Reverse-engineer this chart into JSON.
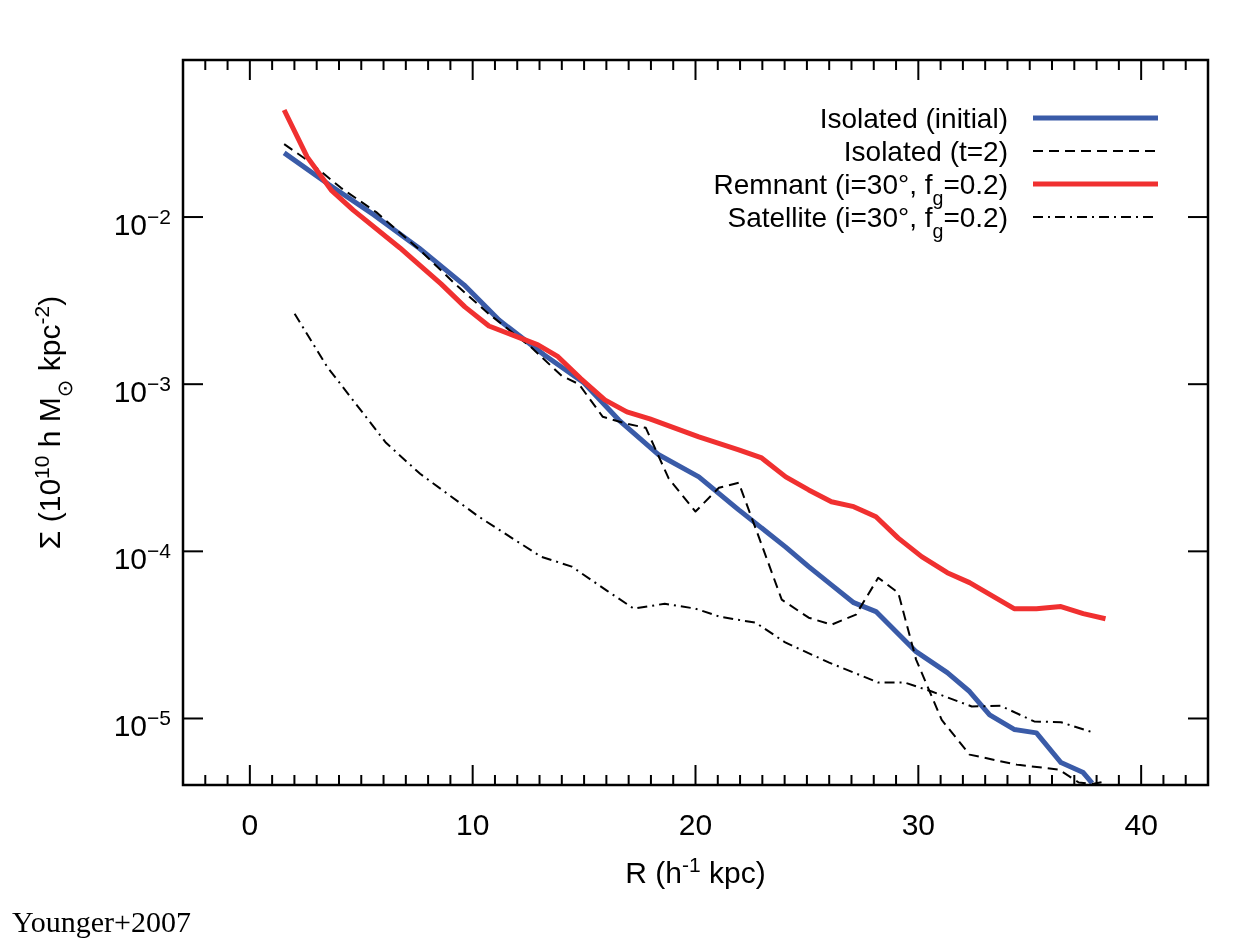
{
  "chart_data": {
    "type": "line",
    "xlabel": "R (h$^{-1}$ kpc)",
    "ylabel": "Σ (10$^{10}$ h M$_{⊙}$ kpc$^{-2}$)",
    "log": "y",
    "legend": "top right",
    "xlim": [
      -3,
      43
    ],
    "ylim": [
      4e-06,
      0.087
    ],
    "xticks": [
      {
        "value": -3,
        "label": null
      },
      {
        "value": -2,
        "label": null
      },
      {
        "value": -1,
        "label": null
      },
      0,
      {
        "value": 1,
        "label": null
      },
      {
        "value": 2,
        "label": null
      },
      {
        "value": 3,
        "label": null
      },
      {
        "value": 4,
        "label": null
      },
      {
        "value": 5,
        "label": null
      },
      {
        "value": 6,
        "label": null
      },
      {
        "value": 7,
        "label": null
      },
      {
        "value": 8,
        "label": null
      },
      {
        "value": 9,
        "label": null
      },
      10,
      {
        "value": 11,
        "label": null
      },
      {
        "value": 12,
        "label": null
      },
      {
        "value": 13,
        "label": null
      },
      {
        "value": 14,
        "label": null
      },
      {
        "value": 15,
        "label": null
      },
      {
        "value": 16,
        "label": null
      },
      {
        "value": 17,
        "label": null
      },
      {
        "value": 18,
        "label": null
      },
      {
        "value": 19,
        "label": null
      },
      20,
      {
        "value": 21,
        "label": null
      },
      {
        "value": 22,
        "label": null
      },
      {
        "value": 23,
        "label": null
      },
      {
        "value": 24,
        "label": null
      },
      {
        "value": 25,
        "label": null
      },
      {
        "value": 26,
        "label": null
      },
      {
        "value": 27,
        "label": null
      },
      {
        "value": 28,
        "label": null
      },
      {
        "value": 29,
        "label": null
      },
      30,
      {
        "value": 31,
        "label": null
      },
      {
        "value": 32,
        "label": null
      },
      {
        "value": 33,
        "label": null
      },
      {
        "value": 34,
        "label": null
      },
      {
        "value": 35,
        "label": null
      },
      {
        "value": 36,
        "label": null
      },
      {
        "value": 37,
        "label": null
      },
      {
        "value": 38,
        "label": null
      },
      {
        "value": 39,
        "label": null
      },
      40,
      {
        "value": 41,
        "label": null
      },
      {
        "value": 42,
        "label": null
      },
      {
        "value": 43,
        "label": null
      }
    ],
    "yticks": [
      {
        "value": 1e-05,
        "label": "10$^{−5}$"
      },
      {
        "value": 0.0001,
        "label": "10$^{−4}$"
      },
      {
        "value": 0.001,
        "label": "10$^{−3}$"
      },
      {
        "value": 0.01,
        "label": "10$^{−2}$"
      }
    ],
    "annotations": [
      "Younger+2007"
    ],
    "series": [
      {
        "name": "Isolated (initial)",
        "color": "#3a5ba8",
        "line_style": "solid",
        "x": [
          1.54,
          3.56,
          5.57,
          7.59,
          9.61,
          11.18,
          13.2,
          14.99,
          16.56,
          18.35,
          20.15,
          21.94,
          24.05,
          25.08,
          26.1,
          27.1,
          28.1,
          29.9,
          31.3,
          32.3,
          33.2,
          34.3,
          35.3,
          36.4,
          37.4,
          37.8
        ],
        "values": [
          0.0242,
          0.0156,
          0.0103,
          0.00653,
          0.00393,
          0.00242,
          0.0015,
          0.00102,
          0.00061,
          0.000378,
          0.000279,
          0.000177,
          0.000106,
          8.1e-05,
          6.3e-05,
          4.93e-05,
          4.36e-05,
          2.51e-05,
          1.88e-05,
          1.45e-05,
          1.05e-05,
          8.6e-06,
          8.2e-06,
          5.45e-06,
          4.75e-06,
          4.1e-06
        ]
      },
      {
        "name": "Isolated (t=2)",
        "color": "#000000",
        "line_style": "dashed",
        "x": [
          1.54,
          2.57,
          4.1,
          5.67,
          7.63,
          9.21,
          10.73,
          12.61,
          14.0,
          14.77,
          15.84,
          16.92,
          17.77,
          18.8,
          20.0,
          21.05,
          21.94,
          22.84,
          23.87,
          25.08,
          26.1,
          27.2,
          28.2,
          29.1,
          29.9,
          31.05,
          32.3,
          34.4,
          36.3,
          37.2,
          37.8,
          38.4
        ],
        "values": [
          0.0273,
          0.0219,
          0.0149,
          0.0107,
          0.00635,
          0.00398,
          0.00263,
          0.00167,
          0.00112,
          0.001,
          0.000638,
          0.00058,
          0.000548,
          0.000272,
          0.000173,
          0.00024,
          0.000257,
          0.000122,
          5.14e-05,
          4.01e-05,
          3.64e-05,
          4.18e-05,
          6.95e-05,
          5.65e-05,
          2.25e-05,
          9.8e-06,
          6.08e-06,
          5.3e-06,
          4.95e-06,
          4.14e-06,
          4.05e-06,
          4.2e-06
        ]
      },
      {
        "name": "Remnant (i=30°, f$_{g}$=0.2)",
        "color": "#f03030",
        "line_style": "solid",
        "x": [
          1.54,
          2.57,
          3.65,
          4.64,
          6.74,
          8.58,
          9.65,
          10.73,
          12.93,
          13.83,
          14.85,
          15.93,
          16.92,
          17.95,
          20.15,
          21.94,
          22.97,
          24.05,
          25.08,
          26.1,
          27.1,
          28.1,
          29.1,
          30.15,
          31.3,
          32.3,
          34.3,
          35.3,
          36.4,
          37.4,
          38.4
        ],
        "values": [
          0.0437,
          0.0229,
          0.0145,
          0.011,
          0.00653,
          0.00398,
          0.0029,
          0.00223,
          0.00172,
          0.00146,
          0.00108,
          0.000806,
          0.000683,
          0.00062,
          0.000484,
          0.000405,
          0.000362,
          0.000279,
          0.000233,
          0.000198,
          0.000185,
          0.000161,
          0.00012,
          9.3e-05,
          7.45e-05,
          6.5e-05,
          4.54e-05,
          4.54e-05,
          4.67e-05,
          4.24e-05,
          3.95e-05
        ]
      },
      {
        "name": "Satellite (i=30°, f$_{g}$=0.2)",
        "color": "#000000",
        "line_style": "dashdot",
        "x": [
          2.01,
          3.47,
          6.11,
          7.64,
          10.28,
          13.06,
          14.45,
          16.02,
          17.23,
          18.62,
          20.0,
          21.1,
          22.7,
          24.05,
          26.0,
          28.2,
          29.4,
          30.6,
          32.4,
          33.7,
          35.2,
          36.4,
          37.9
        ],
        "values": [
          0.00264,
          0.00127,
          0.000446,
          0.000291,
          0.000161,
          9.3e-05,
          8.1e-05,
          5.82e-05,
          4.54e-05,
          4.86e-05,
          4.54e-05,
          4.06e-05,
          3.74e-05,
          2.84e-05,
          2.16e-05,
          1.64e-05,
          1.64e-05,
          1.45e-05,
          1.18e-05,
          1.19e-05,
          9.6e-06,
          9.5e-06,
          8.2e-06
        ]
      }
    ]
  }
}
